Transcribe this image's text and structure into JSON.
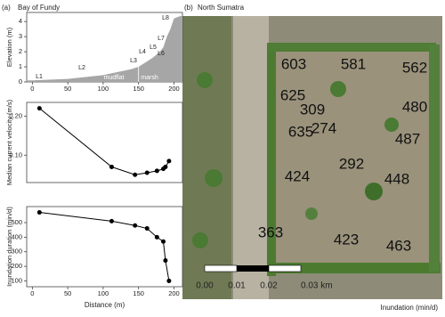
{
  "panel_labels": [
    "(a)",
    "(b)"
  ],
  "chart_data": [
    {
      "type": "area",
      "title": "Bay of Fundy",
      "ylabel": "Elevation (m)",
      "color": "#a6a6a6",
      "x": [
        -8,
        0,
        50,
        100,
        120,
        140,
        150,
        160,
        170,
        180,
        185,
        190,
        195,
        200,
        205,
        212
      ],
      "values": [
        0.1,
        0.1,
        0.2,
        0.45,
        0.65,
        0.85,
        1.0,
        1.3,
        1.6,
        2.0,
        2.3,
        3.0,
        3.5,
        4.2,
        4.3,
        4.4
      ],
      "annotations": [
        "L1",
        "L2",
        "L3",
        "L4",
        "L5",
        "L6",
        "L7",
        "L8",
        "mudflat",
        "marsh"
      ],
      "xlim": [
        -8,
        212
      ],
      "ylim": [
        0,
        4.6
      ],
      "xticks": [
        0,
        50,
        100,
        150,
        200
      ],
      "yticks": [
        0,
        1,
        2,
        3,
        4
      ]
    },
    {
      "type": "line",
      "ylabel": "Median current velocity (m/s)",
      "color": "#000000",
      "x": [
        10,
        112,
        145,
        162,
        176,
        185,
        188,
        193
      ],
      "values": [
        0.22,
        0.07,
        0.05,
        0.055,
        0.06,
        0.065,
        0.07,
        0.085
      ],
      "xlim": [
        -8,
        212
      ],
      "ylim": [
        0.03,
        0.235
      ],
      "yticks": [
        {
          "value": 0.1,
          "label": "0.10"
        },
        {
          "value": 0.2,
          "label": "0.20"
        }
      ]
    },
    {
      "type": "line",
      "ylabel": "Inundation duration (min/d)",
      "xlabel": "Distance (m)",
      "color": "#000000",
      "x": [
        10,
        112,
        145,
        162,
        176,
        185,
        188,
        193
      ],
      "values": [
        570,
        510,
        480,
        460,
        400,
        370,
        240,
        100
      ],
      "xlim": [
        -8,
        212
      ],
      "ylim": [
        60,
        610
      ],
      "xticks": [
        0,
        50,
        100,
        150,
        200
      ],
      "yticks": [
        100,
        200,
        300,
        400,
        500
      ]
    }
  ],
  "map": {
    "title": "North Sumatra",
    "caption": "Inundation (min/d)",
    "values": [
      603,
      581,
      562,
      625,
      309,
      480,
      274,
      635,
      487,
      292,
      424,
      448,
      363,
      423,
      463
    ],
    "scale_labels": [
      "0.00",
      "0.01",
      "0.02",
      "0.03 km"
    ]
  }
}
